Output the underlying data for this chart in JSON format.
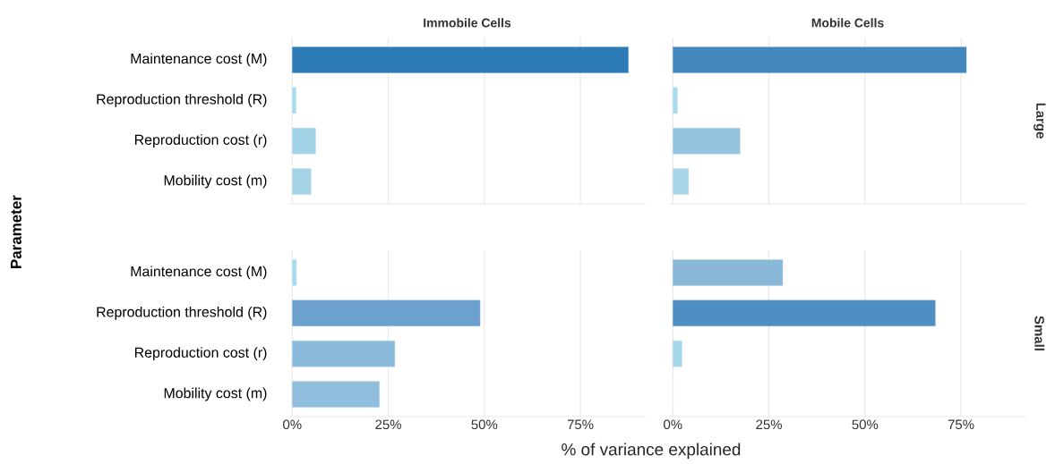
{
  "chart_data": [
    {
      "type": "bar",
      "orientation": "horizontal",
      "title": "Immobile Cells",
      "ylabel": "Parameter",
      "categories": [
        "Maintenance cost (M)",
        "Reproduction threshold (R)",
        "Reproduction cost (r)",
        "Mobility cost (m)"
      ],
      "values": [
        87.5,
        1.0,
        6.1,
        4.9
      ],
      "colors": [
        "#2c7bb6",
        "#a8dcec",
        "#a1d2e6",
        "#a6d4e6"
      ],
      "xlim": [
        -1,
        92
      ],
      "xticks": [
        {
          "value": 0,
          "label": null
        },
        {
          "value": 25,
          "label": null
        },
        {
          "value": 50,
          "label": null
        },
        {
          "value": 75,
          "label": null
        }
      ],
      "grid": "x",
      "tick_labels": "y"
    },
    {
      "type": "bar",
      "orientation": "horizontal",
      "title": "Mobile Cells",
      "y2label": "Large",
      "categories": [
        null,
        null,
        null,
        null
      ],
      "values": [
        76.4,
        1.2,
        17.5,
        4.1
      ],
      "colors": [
        "#4287bd",
        "#a8dcec",
        "#95c4df",
        "#a8d5e7"
      ],
      "xlim": [
        -1,
        92
      ],
      "xticks": [
        {
          "value": 0,
          "label": null
        },
        {
          "value": 25,
          "label": null
        },
        {
          "value": 50,
          "label": null
        },
        {
          "value": 75,
          "label": null
        }
      ],
      "grid": "x",
      "tick_labels": false
    },
    {
      "type": "bar",
      "orientation": "horizontal",
      "xlabel": "% of variance explained",
      "categories": [
        "Maintenance cost (M)",
        "Reproduction threshold (R)",
        "Reproduction cost (r)",
        "Mobility cost (m)"
      ],
      "values": [
        1.1,
        48.9,
        26.7,
        22.7
      ],
      "colors": [
        "#a8dcec",
        "#6ca1cf",
        "#8abbdb",
        "#91bedd"
      ],
      "xlim": [
        -1,
        92
      ],
      "xticks": [
        {
          "value": 0,
          "label": "0%"
        },
        {
          "value": 25,
          "label": "25%"
        },
        {
          "value": 50,
          "label": "50%"
        },
        {
          "value": 75,
          "label": "75%"
        }
      ],
      "grid": "x"
    },
    {
      "type": "bar",
      "orientation": "horizontal",
      "y2label": "Small",
      "categories": [
        null,
        null,
        null,
        null
      ],
      "values": [
        28.6,
        68.3,
        2.4,
        0.2
      ],
      "colors": [
        "#8ab8d9",
        "#4f8ec2",
        "#a6d8e9",
        "#eaf5fb"
      ],
      "xlim": [
        -1,
        92
      ],
      "xticks": [
        {
          "value": 0,
          "label": "0%"
        },
        {
          "value": 25,
          "label": "25%"
        },
        {
          "value": 50,
          "label": "50%"
        },
        {
          "value": 75,
          "label": "75%"
        }
      ],
      "grid": "x",
      "tick_labels": "x"
    }
  ]
}
